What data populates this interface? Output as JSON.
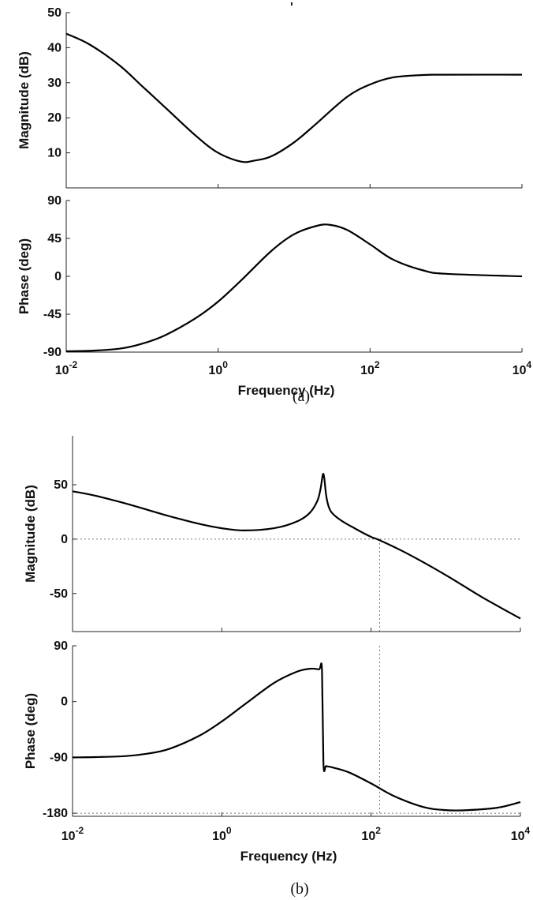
{
  "figure": {
    "caption_a": "(a)",
    "caption_b": "(b)",
    "stray_mark": "'"
  },
  "chart_data": [
    {
      "type": "line",
      "id": "a-magnitude",
      "xscale": "log",
      "xlim": [
        0.01,
        10000
      ],
      "ylim": [
        0,
        50
      ],
      "ylabel": "Magnitude (dB)",
      "yticks": [
        10,
        20,
        30,
        40,
        50
      ],
      "x": [
        0.01,
        0.02,
        0.05,
        0.1,
        0.2,
        0.5,
        1,
        2,
        3,
        5,
        10,
        20,
        50,
        100,
        200,
        500,
        1000,
        10000
      ],
      "y": [
        44,
        41,
        35,
        29,
        23,
        15,
        10,
        7.5,
        7.8,
        9,
        13,
        18.5,
        26,
        29.5,
        31.5,
        32.2,
        32.3,
        32.3
      ]
    },
    {
      "type": "line",
      "id": "a-phase",
      "xscale": "log",
      "xlim": [
        0.01,
        10000
      ],
      "ylim": [
        -90,
        90
      ],
      "ylabel": "Phase (deg)",
      "xlabel": "Frequency (Hz)",
      "yticks": [
        -90,
        -45,
        0,
        45,
        90
      ],
      "x": [
        0.01,
        0.02,
        0.05,
        0.1,
        0.2,
        0.5,
        1,
        2,
        5,
        10,
        20,
        30,
        50,
        100,
        200,
        500,
        1000,
        10000
      ],
      "y": [
        -89,
        -88.5,
        -86,
        -80,
        -70,
        -50,
        -30,
        -5,
        30,
        50,
        60,
        61,
        55,
        38,
        20,
        7,
        3,
        0
      ]
    },
    {
      "type": "line",
      "id": "b-magnitude",
      "xscale": "log",
      "xlim": [
        0.01,
        10000
      ],
      "ylim": [
        -85,
        95
      ],
      "ylabel": "Magnitude (dB)",
      "yticks": [
        -50,
        0,
        50
      ],
      "reference_line_y": 0,
      "crossover_x": 130,
      "x": [
        0.01,
        0.02,
        0.05,
        0.1,
        0.2,
        0.5,
        1,
        2,
        5,
        10,
        15,
        19,
        21,
        23,
        25,
        27,
        30,
        40,
        60,
        100,
        130,
        300,
        1000,
        3000,
        10000
      ],
      "y": [
        44,
        40,
        33,
        27,
        21,
        14,
        10,
        8,
        10,
        16,
        24,
        35,
        46,
        60,
        40,
        30,
        24,
        17,
        10,
        2,
        -1,
        -13,
        -33,
        -53,
        -73
      ]
    },
    {
      "type": "line",
      "id": "b-phase",
      "xscale": "log",
      "xlim": [
        0.01,
        10000
      ],
      "ylim": [
        -185,
        90
      ],
      "ylabel": "Phase (deg)",
      "xlabel": "Frequency (Hz)",
      "yticks": [
        -180,
        -90,
        0,
        90
      ],
      "reference_line_y": -180,
      "crossover_x": 130,
      "x": [
        0.01,
        0.02,
        0.05,
        0.1,
        0.2,
        0.5,
        1,
        2,
        5,
        10,
        15,
        20,
        22,
        23,
        25,
        30,
        50,
        100,
        200,
        500,
        1000,
        2000,
        5000,
        10000
      ],
      "y": [
        -90,
        -89.5,
        -88,
        -84,
        -76,
        -55,
        -32,
        -5,
        30,
        48,
        53,
        52,
        50,
        -100,
        -104,
        -106,
        -114,
        -132,
        -152,
        -170,
        -175,
        -175,
        -171,
        -162
      ]
    }
  ],
  "xtick_labels": [
    {
      "base": "10",
      "exp": "-2",
      "value": 0.01
    },
    {
      "base": "10",
      "exp": "0",
      "value": 1
    },
    {
      "base": "10",
      "exp": "2",
      "value": 100
    },
    {
      "base": "10",
      "exp": "4",
      "value": 10000
    }
  ]
}
